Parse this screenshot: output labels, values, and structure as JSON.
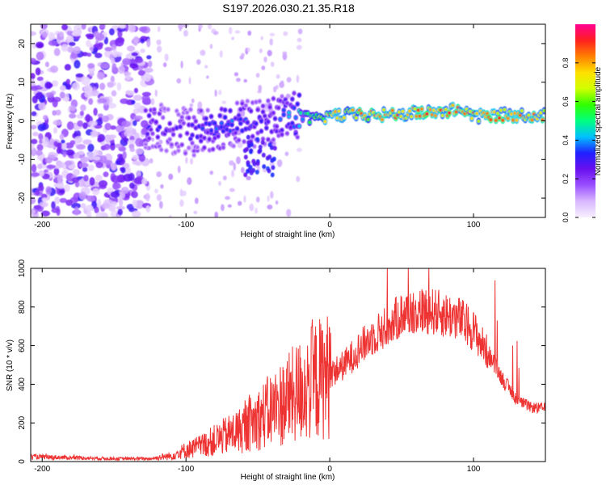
{
  "title": "S197.2026.030.21.35.R18",
  "chart_data": [
    {
      "type": "heatmap",
      "xlabel": "Height of straight line (km)",
      "ylabel": "Frequency (Hz)",
      "xlim": [
        -208,
        150
      ],
      "ylim": [
        -25,
        25
      ],
      "xticks": [
        -200,
        -100,
        0,
        100
      ],
      "yticks": [
        -20,
        -10,
        0,
        10,
        20
      ],
      "xtick_labels": [
        "-200",
        "-100",
        "0",
        "100"
      ],
      "ytick_labels": [
        "-20",
        "-10",
        "0",
        "10",
        "20"
      ],
      "colorbar": {
        "label": "Normalized spectral amplitude",
        "range": [
          0,
          1
        ],
        "ticks": [
          0.0,
          0.2,
          0.4,
          0.6,
          0.8
        ],
        "tick_labels": [
          "0.0",
          "0.2",
          "0.4",
          "0.6",
          "0.8"
        ],
        "colors": [
          "#f8f0ff",
          "#d9b8ff",
          "#9a50ff",
          "#6a10f0",
          "#2020ff",
          "#00c0ff",
          "#00ff80",
          "#30ff00",
          "#d0ff00",
          "#ffe000",
          "#ff8000",
          "#ff2020",
          "#ff0090"
        ]
      },
      "ridge": [
        {
          "x": -125,
          "y": -1.0,
          "amp": 0.35
        },
        {
          "x": -110,
          "y": -2.5,
          "amp": 0.3
        },
        {
          "x": -95,
          "y": -3.0,
          "amp": 0.35
        },
        {
          "x": -80,
          "y": -1.5,
          "amp": 0.38
        },
        {
          "x": -65,
          "y": -0.5,
          "amp": 0.4
        },
        {
          "x": -50,
          "y": -1.0,
          "amp": 0.35
        },
        {
          "x": -35,
          "y": 1.0,
          "amp": 0.38
        },
        {
          "x": -20,
          "y": 1.5,
          "amp": 0.5
        },
        {
          "x": -10,
          "y": 0.0,
          "amp": 0.7
        },
        {
          "x": 0,
          "y": 1.5,
          "amp": 0.8
        },
        {
          "x": 20,
          "y": 1.5,
          "amp": 0.85
        },
        {
          "x": 40,
          "y": 1.5,
          "amp": 0.88
        },
        {
          "x": 60,
          "y": 2.0,
          "amp": 0.9
        },
        {
          "x": 80,
          "y": 2.5,
          "amp": 0.92
        },
        {
          "x": 95,
          "y": 3.0,
          "amp": 0.92
        },
        {
          "x": 100,
          "y": 1.0,
          "amp": 0.88
        },
        {
          "x": 120,
          "y": 1.5,
          "amp": 0.9
        },
        {
          "x": 150,
          "y": 1.5,
          "amp": 0.85
        }
      ]
    },
    {
      "type": "line",
      "xlabel": "Height of straight line (km)",
      "ylabel": "SNR (10 * v/v)",
      "xlim": [
        -208,
        150
      ],
      "ylim": [
        0,
        1000
      ],
      "xticks": [
        -200,
        -100,
        0,
        100
      ],
      "yticks": [
        0,
        200,
        400,
        600,
        800,
        1000
      ],
      "xtick_labels": [
        "-200",
        "-100",
        "0",
        "100"
      ],
      "ytick_labels": [
        "0",
        "200",
        "400",
        "600",
        "800",
        "1000"
      ],
      "line_color": "#ee3333",
      "series": [
        {
          "name": "SNR",
          "x": [
            -208,
            -180,
            -150,
            -125,
            -110,
            -100,
            -90,
            -80,
            -70,
            -60,
            -50,
            -40,
            -30,
            -20,
            -10,
            0,
            10,
            20,
            30,
            40,
            50,
            60,
            70,
            80,
            90,
            100,
            110,
            120,
            130,
            140,
            150
          ],
          "y": [
            25,
            20,
            15,
            15,
            30,
            60,
            80,
            110,
            140,
            170,
            220,
            270,
            320,
            370,
            420,
            450,
            500,
            580,
            650,
            700,
            760,
            780,
            780,
            760,
            740,
            680,
            560,
            430,
            320,
            280,
            275
          ]
        }
      ]
    }
  ]
}
